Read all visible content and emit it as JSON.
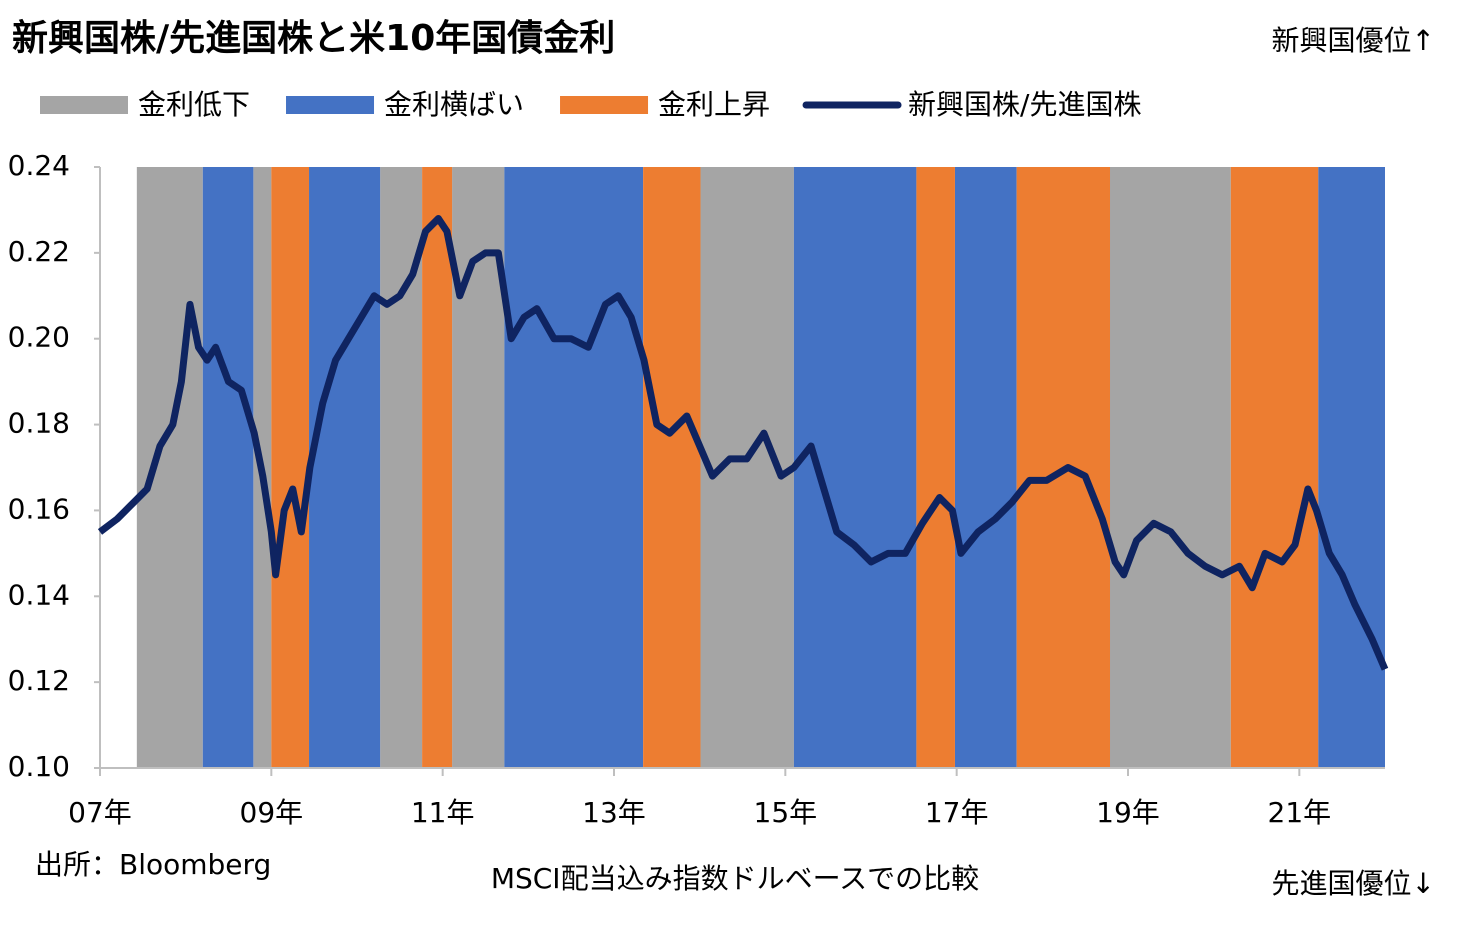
{
  "chart_data": {
    "type": "line",
    "title": "新興国株/先進国株と米10年国債金利",
    "annotations": {
      "top_right": "新興国優位↑",
      "bottom_right": "先進国優位↓",
      "source": "出所：Bloomberg",
      "note": "MSCI配当込み指数ドルベースでの比較"
    },
    "regimes": [
      {
        "name": "金利低下",
        "color": "#a5a5a5",
        "ranges": [
          [
            2007.43,
            2008.2
          ],
          [
            2008.79,
            2009.0
          ],
          [
            2010.27,
            2010.76
          ],
          [
            2011.11,
            2011.72
          ],
          [
            2014.01,
            2015.1
          ],
          [
            2018.79,
            2020.2
          ]
        ]
      },
      {
        "name": "金利横ばい",
        "color": "#4472c4",
        "ranges": [
          [
            2008.2,
            2008.79
          ],
          [
            2009.44,
            2010.27
          ],
          [
            2011.72,
            2013.34
          ],
          [
            2015.1,
            2016.53
          ],
          [
            2016.98,
            2017.7
          ],
          [
            2021.22,
            2022.0
          ]
        ]
      },
      {
        "name": "金利上昇",
        "color": "#ed7d31",
        "ranges": [
          [
            2009.0,
            2009.44
          ],
          [
            2010.76,
            2011.11
          ],
          [
            2013.34,
            2014.01
          ],
          [
            2016.53,
            2016.98
          ],
          [
            2017.7,
            2018.79
          ],
          [
            2020.2,
            2021.22
          ]
        ]
      }
    ],
    "x": [
      2007.0,
      2007.2,
      2007.4,
      2007.55,
      2007.7,
      2007.85,
      2007.95,
      2008.05,
      2008.15,
      2008.25,
      2008.35,
      2008.5,
      2008.65,
      2008.8,
      2008.9,
      2009.0,
      2009.05,
      2009.15,
      2009.25,
      2009.35,
      2009.45,
      2009.6,
      2009.75,
      2009.9,
      2010.05,
      2010.2,
      2010.35,
      2010.5,
      2010.65,
      2010.8,
      2010.95,
      2011.05,
      2011.2,
      2011.35,
      2011.5,
      2011.65,
      2011.8,
      2011.95,
      2012.1,
      2012.3,
      2012.5,
      2012.7,
      2012.9,
      2013.05,
      2013.2,
      2013.35,
      2013.5,
      2013.65,
      2013.85,
      2014.0,
      2014.15,
      2014.35,
      2014.55,
      2014.75,
      2014.95,
      2015.1,
      2015.3,
      2015.45,
      2015.6,
      2015.8,
      2016.0,
      2016.2,
      2016.4,
      2016.6,
      2016.8,
      2016.95,
      2017.05,
      2017.25,
      2017.45,
      2017.65,
      2017.85,
      2018.05,
      2018.3,
      2018.5,
      2018.7,
      2018.85,
      2018.95,
      2019.1,
      2019.3,
      2019.5,
      2019.7,
      2019.9,
      2020.1,
      2020.3,
      2020.45,
      2020.6,
      2020.8,
      2020.95,
      2021.1,
      2021.2,
      2021.35,
      2021.5,
      2021.65,
      2021.85,
      2022.0
    ],
    "series": [
      {
        "name": "新興国株/先進国株",
        "color": "#0f2461",
        "values": [
          0.155,
          0.158,
          0.162,
          0.165,
          0.175,
          0.18,
          0.19,
          0.208,
          0.198,
          0.195,
          0.198,
          0.19,
          0.188,
          0.178,
          0.168,
          0.155,
          0.145,
          0.16,
          0.165,
          0.155,
          0.17,
          0.185,
          0.195,
          0.2,
          0.205,
          0.21,
          0.208,
          0.21,
          0.215,
          0.225,
          0.228,
          0.225,
          0.21,
          0.218,
          0.22,
          0.22,
          0.2,
          0.205,
          0.207,
          0.2,
          0.2,
          0.198,
          0.208,
          0.21,
          0.205,
          0.195,
          0.18,
          0.178,
          0.182,
          0.175,
          0.168,
          0.172,
          0.172,
          0.178,
          0.168,
          0.17,
          0.175,
          0.165,
          0.155,
          0.152,
          0.148,
          0.15,
          0.15,
          0.157,
          0.163,
          0.16,
          0.15,
          0.155,
          0.158,
          0.162,
          0.167,
          0.167,
          0.17,
          0.168,
          0.158,
          0.148,
          0.145,
          0.153,
          0.157,
          0.155,
          0.15,
          0.147,
          0.145,
          0.147,
          0.142,
          0.15,
          0.148,
          0.152,
          0.165,
          0.16,
          0.15,
          0.145,
          0.138,
          0.13,
          0.123
        ]
      }
    ],
    "xlim": [
      2007,
      2022
    ],
    "xticks": [
      {
        "value": 2007,
        "label": "07年"
      },
      {
        "value": 2009,
        "label": "09年"
      },
      {
        "value": 2011,
        "label": "11年"
      },
      {
        "value": 2013,
        "label": "13年"
      },
      {
        "value": 2015,
        "label": "15年"
      },
      {
        "value": 2017,
        "label": "17年"
      },
      {
        "value": 2019,
        "label": "19年"
      },
      {
        "value": 2021,
        "label": "21年"
      }
    ],
    "ylim": [
      0.1,
      0.24
    ],
    "yticks": [
      {
        "value": 0.1,
        "label": "0.10"
      },
      {
        "value": 0.12,
        "label": "0.12"
      },
      {
        "value": 0.14,
        "label": "0.14"
      },
      {
        "value": 0.16,
        "label": "0.16"
      },
      {
        "value": 0.18,
        "label": "0.18"
      },
      {
        "value": 0.2,
        "label": "0.20"
      },
      {
        "value": 0.22,
        "label": "0.22"
      },
      {
        "value": 0.24,
        "label": "0.24"
      }
    ],
    "grid": false
  }
}
